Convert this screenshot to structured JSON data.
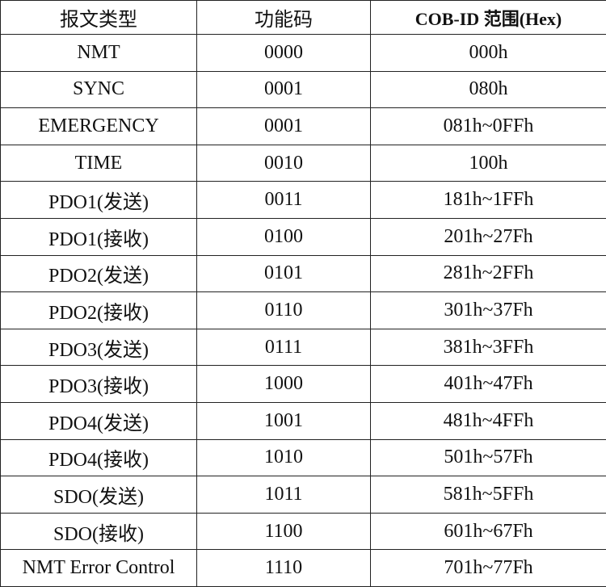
{
  "table": {
    "header": [
      "报文类型",
      "功能码",
      "COB-ID 范围(Hex)"
    ],
    "rows": [
      [
        "NMT",
        "0000",
        "000h"
      ],
      [
        "SYNC",
        "0001",
        "080h"
      ],
      [
        "EMERGENCY",
        "0001",
        "081h~0FFh"
      ],
      [
        "TIME",
        "0010",
        "100h"
      ],
      [
        "PDO1(发送)",
        "0011",
        "181h~1FFh"
      ],
      [
        "PDO1(接收)",
        "0100",
        "201h~27Fh"
      ],
      [
        "PDO2(发送)",
        "0101",
        "281h~2FFh"
      ],
      [
        "PDO2(接收)",
        "0110",
        "301h~37Fh"
      ],
      [
        "PDO3(发送)",
        "0111",
        "381h~3FFh"
      ],
      [
        "PDO3(接收)",
        "1000",
        "401h~47Fh"
      ],
      [
        "PDO4(发送)",
        "1001",
        "481h~4FFh"
      ],
      [
        "PDO4(接收)",
        "1010",
        "501h~57Fh"
      ],
      [
        "SDO(发送)",
        "1011",
        "581h~5FFh"
      ],
      [
        "SDO(接收)",
        "1100",
        "601h~67Fh"
      ],
      [
        "NMT Error Control",
        "1110",
        "701h~77Fh"
      ]
    ]
  }
}
